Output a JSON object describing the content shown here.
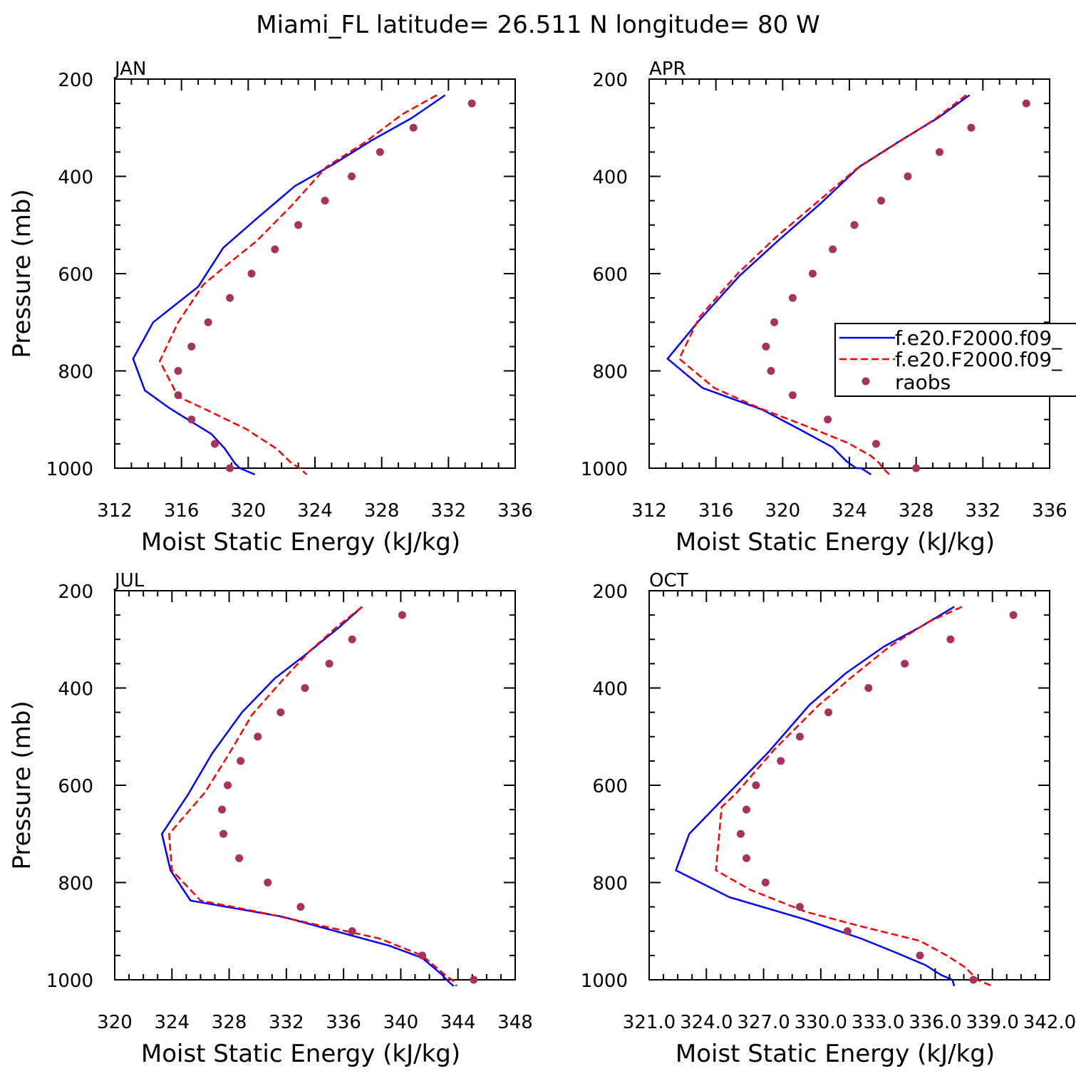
{
  "figure_title": "Miami_FL  latitude= 26.511 N longitude= 80 W",
  "legend": {
    "entries": [
      {
        "label": "f.e20.F2000.f09_",
        "style": "solid",
        "color": "#0000ff"
      },
      {
        "label": "f.e20.F2000.f09_",
        "style": "dashed",
        "color": "#ff0000"
      },
      {
        "label": "raobs",
        "style": "marker",
        "color": "#a8325e"
      }
    ]
  },
  "colors": {
    "model1": "#0000ff",
    "model2": "#ff0000",
    "raobs": "#a8325e"
  },
  "chart_data": [
    {
      "type": "line",
      "title": "JAN",
      "xlabel": "Moist Static Energy (kJ/kg)",
      "ylabel": "Pressure (mb)",
      "xlim": [
        312,
        336
      ],
      "ylim": [
        1000,
        200
      ],
      "xticks": [
        312,
        316,
        320,
        324,
        328,
        332,
        336
      ],
      "xtick_labels": [
        "312",
        "316",
        "320",
        "324",
        "328",
        "332",
        "336"
      ],
      "yticks": [
        200,
        400,
        600,
        800,
        1000
      ],
      "series": [
        {
          "style": "solid",
          "x": [
            331.8,
            329.8,
            327.4,
            325.2,
            322.8,
            320.5,
            318.5,
            317.0,
            314.3,
            313.1,
            313.8,
            315.3,
            317.8,
            318.6,
            319.2,
            319.5,
            320.4
          ],
          "y": [
            233,
            280,
            326,
            373,
            420,
            487,
            547,
            627,
            700,
            775,
            840,
            877,
            930,
            960,
            990,
            1000,
            1013
          ]
        },
        {
          "style": "dashed",
          "x": [
            331.3,
            329.2,
            327.0,
            324.7,
            322.6,
            320.5,
            318.8,
            317.3,
            315.8,
            314.7,
            315.8,
            317.5,
            319.9,
            321.7,
            322.6,
            323.1,
            323.5
          ],
          "y": [
            233,
            273,
            330,
            380,
            460,
            533,
            580,
            623,
            700,
            780,
            853,
            880,
            920,
            960,
            990,
            1000,
            1013
          ]
        },
        {
          "style": "marker",
          "x": [
            333.4,
            329.9,
            327.9,
            326.2,
            324.6,
            323.0,
            321.6,
            320.2,
            318.9,
            317.6,
            316.6,
            315.8,
            315.8,
            316.6,
            318.0,
            318.9
          ],
          "y": [
            250,
            300,
            350,
            400,
            450,
            500,
            550,
            600,
            650,
            700,
            750,
            800,
            850,
            900,
            950,
            1000
          ]
        }
      ]
    },
    {
      "type": "line",
      "title": "APR",
      "xlabel": "Moist Static Energy (kJ/kg)",
      "ylabel": "",
      "xlim": [
        312,
        336
      ],
      "ylim": [
        1000,
        200
      ],
      "xticks": [
        312,
        316,
        320,
        324,
        328,
        332,
        336
      ],
      "xtick_labels": [
        "312",
        "316",
        "320",
        "324",
        "328",
        "332",
        "336"
      ],
      "yticks": [
        200,
        400,
        600,
        800,
        1000
      ],
      "series": [
        {
          "style": "solid",
          "x": [
            331.2,
            329.3,
            326.9,
            324.6,
            322.3,
            319.8,
            317.4,
            314.9,
            313.1,
            315.2,
            318.8,
            321.0,
            323.0,
            323.8,
            324.4,
            324.7,
            325.3
          ],
          "y": [
            233,
            280,
            330,
            380,
            455,
            530,
            605,
            700,
            775,
            835,
            880,
            920,
            957,
            985,
            1000,
            1000,
            1013
          ]
        },
        {
          "style": "dashed",
          "x": [
            331.0,
            329.1,
            326.7,
            324.4,
            322.0,
            319.6,
            317.3,
            315.0,
            313.8,
            315.9,
            318.5,
            321.3,
            323.9,
            325.3,
            325.8,
            326.0,
            326.4
          ],
          "y": [
            233,
            283,
            335,
            385,
            455,
            525,
            600,
            690,
            775,
            835,
            875,
            912,
            948,
            975,
            990,
            1000,
            1013
          ]
        },
        {
          "style": "marker",
          "x": [
            334.6,
            331.3,
            329.4,
            327.5,
            325.9,
            324.3,
            323.0,
            321.8,
            320.6,
            319.5,
            319.0,
            319.3,
            320.6,
            322.7,
            325.6,
            328.0
          ],
          "y": [
            250,
            300,
            350,
            400,
            450,
            500,
            550,
            600,
            650,
            700,
            750,
            800,
            850,
            900,
            950,
            1000
          ]
        }
      ]
    },
    {
      "type": "line",
      "title": "JUL",
      "xlabel": "Moist Static Energy (kJ/kg)",
      "ylabel": "Pressure (mb)",
      "xlim": [
        320,
        348
      ],
      "ylim": [
        1000,
        200
      ],
      "xticks": [
        320,
        324,
        328,
        332,
        336,
        340,
        344,
        348
      ],
      "xtick_labels": [
        "320",
        "324",
        "328",
        "332",
        "336",
        "340",
        "344",
        "348"
      ],
      "yticks": [
        200,
        400,
        600,
        800,
        1000
      ],
      "series": [
        {
          "style": "solid",
          "x": [
            337.3,
            335.7,
            333.4,
            331.2,
            328.9,
            326.8,
            325.1,
            323.3,
            323.9,
            325.3,
            331.7,
            339.2,
            341.5,
            342.5,
            342.9,
            343.2,
            343.7
          ],
          "y": [
            233,
            275,
            330,
            380,
            450,
            535,
            620,
            700,
            775,
            837,
            870,
            930,
            955,
            980,
            990,
            1000,
            1013
          ]
        },
        {
          "style": "dashed",
          "x": [
            337.3,
            335.5,
            333.6,
            331.7,
            329.6,
            328.0,
            326.3,
            323.8,
            324.0,
            326.0,
            330.0,
            338.5,
            341.5,
            342.9,
            343.3,
            343.6,
            343.9
          ],
          "y": [
            233,
            275,
            325,
            385,
            455,
            535,
            615,
            700,
            775,
            837,
            860,
            915,
            950,
            985,
            995,
            1000,
            1013
          ]
        },
        {
          "style": "marker",
          "x": [
            340.1,
            336.6,
            335.0,
            333.3,
            331.6,
            330.0,
            328.8,
            327.9,
            327.5,
            327.6,
            328.7,
            330.7,
            333.0,
            336.6,
            341.5,
            345.1
          ],
          "y": [
            250,
            300,
            350,
            400,
            450,
            500,
            550,
            600,
            650,
            700,
            750,
            800,
            850,
            900,
            950,
            1000
          ]
        }
      ]
    },
    {
      "type": "line",
      "title": "OCT",
      "xlabel": "Moist Static Energy (kJ/kg)",
      "ylabel": "",
      "xlim": [
        321.0,
        342.0
      ],
      "ylim": [
        1000,
        200
      ],
      "xticks": [
        321.0,
        324.0,
        327.0,
        330.0,
        333.0,
        336.0,
        339.0,
        342.0
      ],
      "xtick_labels": [
        "321.0",
        "324.0",
        "327.0",
        "330.0",
        "333.0",
        "336.0",
        "339.0",
        "342.0"
      ],
      "yticks": [
        200,
        400,
        600,
        800,
        1000
      ],
      "series": [
        {
          "style": "solid",
          "x": [
            337.0,
            335.2,
            333.3,
            331.3,
            329.4,
            327.3,
            325.2,
            323.1,
            322.4,
            325.2,
            329.1,
            332.1,
            334.0,
            335.5,
            336.3,
            336.9,
            337.0
          ],
          "y": [
            233,
            275,
            315,
            370,
            435,
            530,
            615,
            700,
            775,
            830,
            875,
            915,
            945,
            970,
            990,
            1000,
            1013
          ]
        },
        {
          "style": "dashed",
          "x": [
            337.4,
            335.6,
            333.6,
            331.7,
            329.9,
            327.6,
            325.6,
            324.8,
            324.5,
            326.3,
            329.2,
            332.1,
            335.2,
            336.6,
            337.6,
            338.2,
            339.0
          ],
          "y": [
            233,
            265,
            315,
            375,
            435,
            525,
            615,
            645,
            775,
            815,
            860,
            890,
            920,
            950,
            975,
            1000,
            1013
          ]
        },
        {
          "style": "marker",
          "x": [
            340.1,
            336.8,
            334.4,
            332.5,
            330.4,
            328.9,
            327.9,
            326.6,
            326.1,
            325.8,
            326.1,
            327.1,
            328.9,
            331.4,
            335.2,
            338.0
          ],
          "y": [
            250,
            300,
            350,
            400,
            450,
            500,
            550,
            600,
            650,
            700,
            750,
            800,
            850,
            900,
            950,
            1000
          ]
        }
      ]
    }
  ]
}
